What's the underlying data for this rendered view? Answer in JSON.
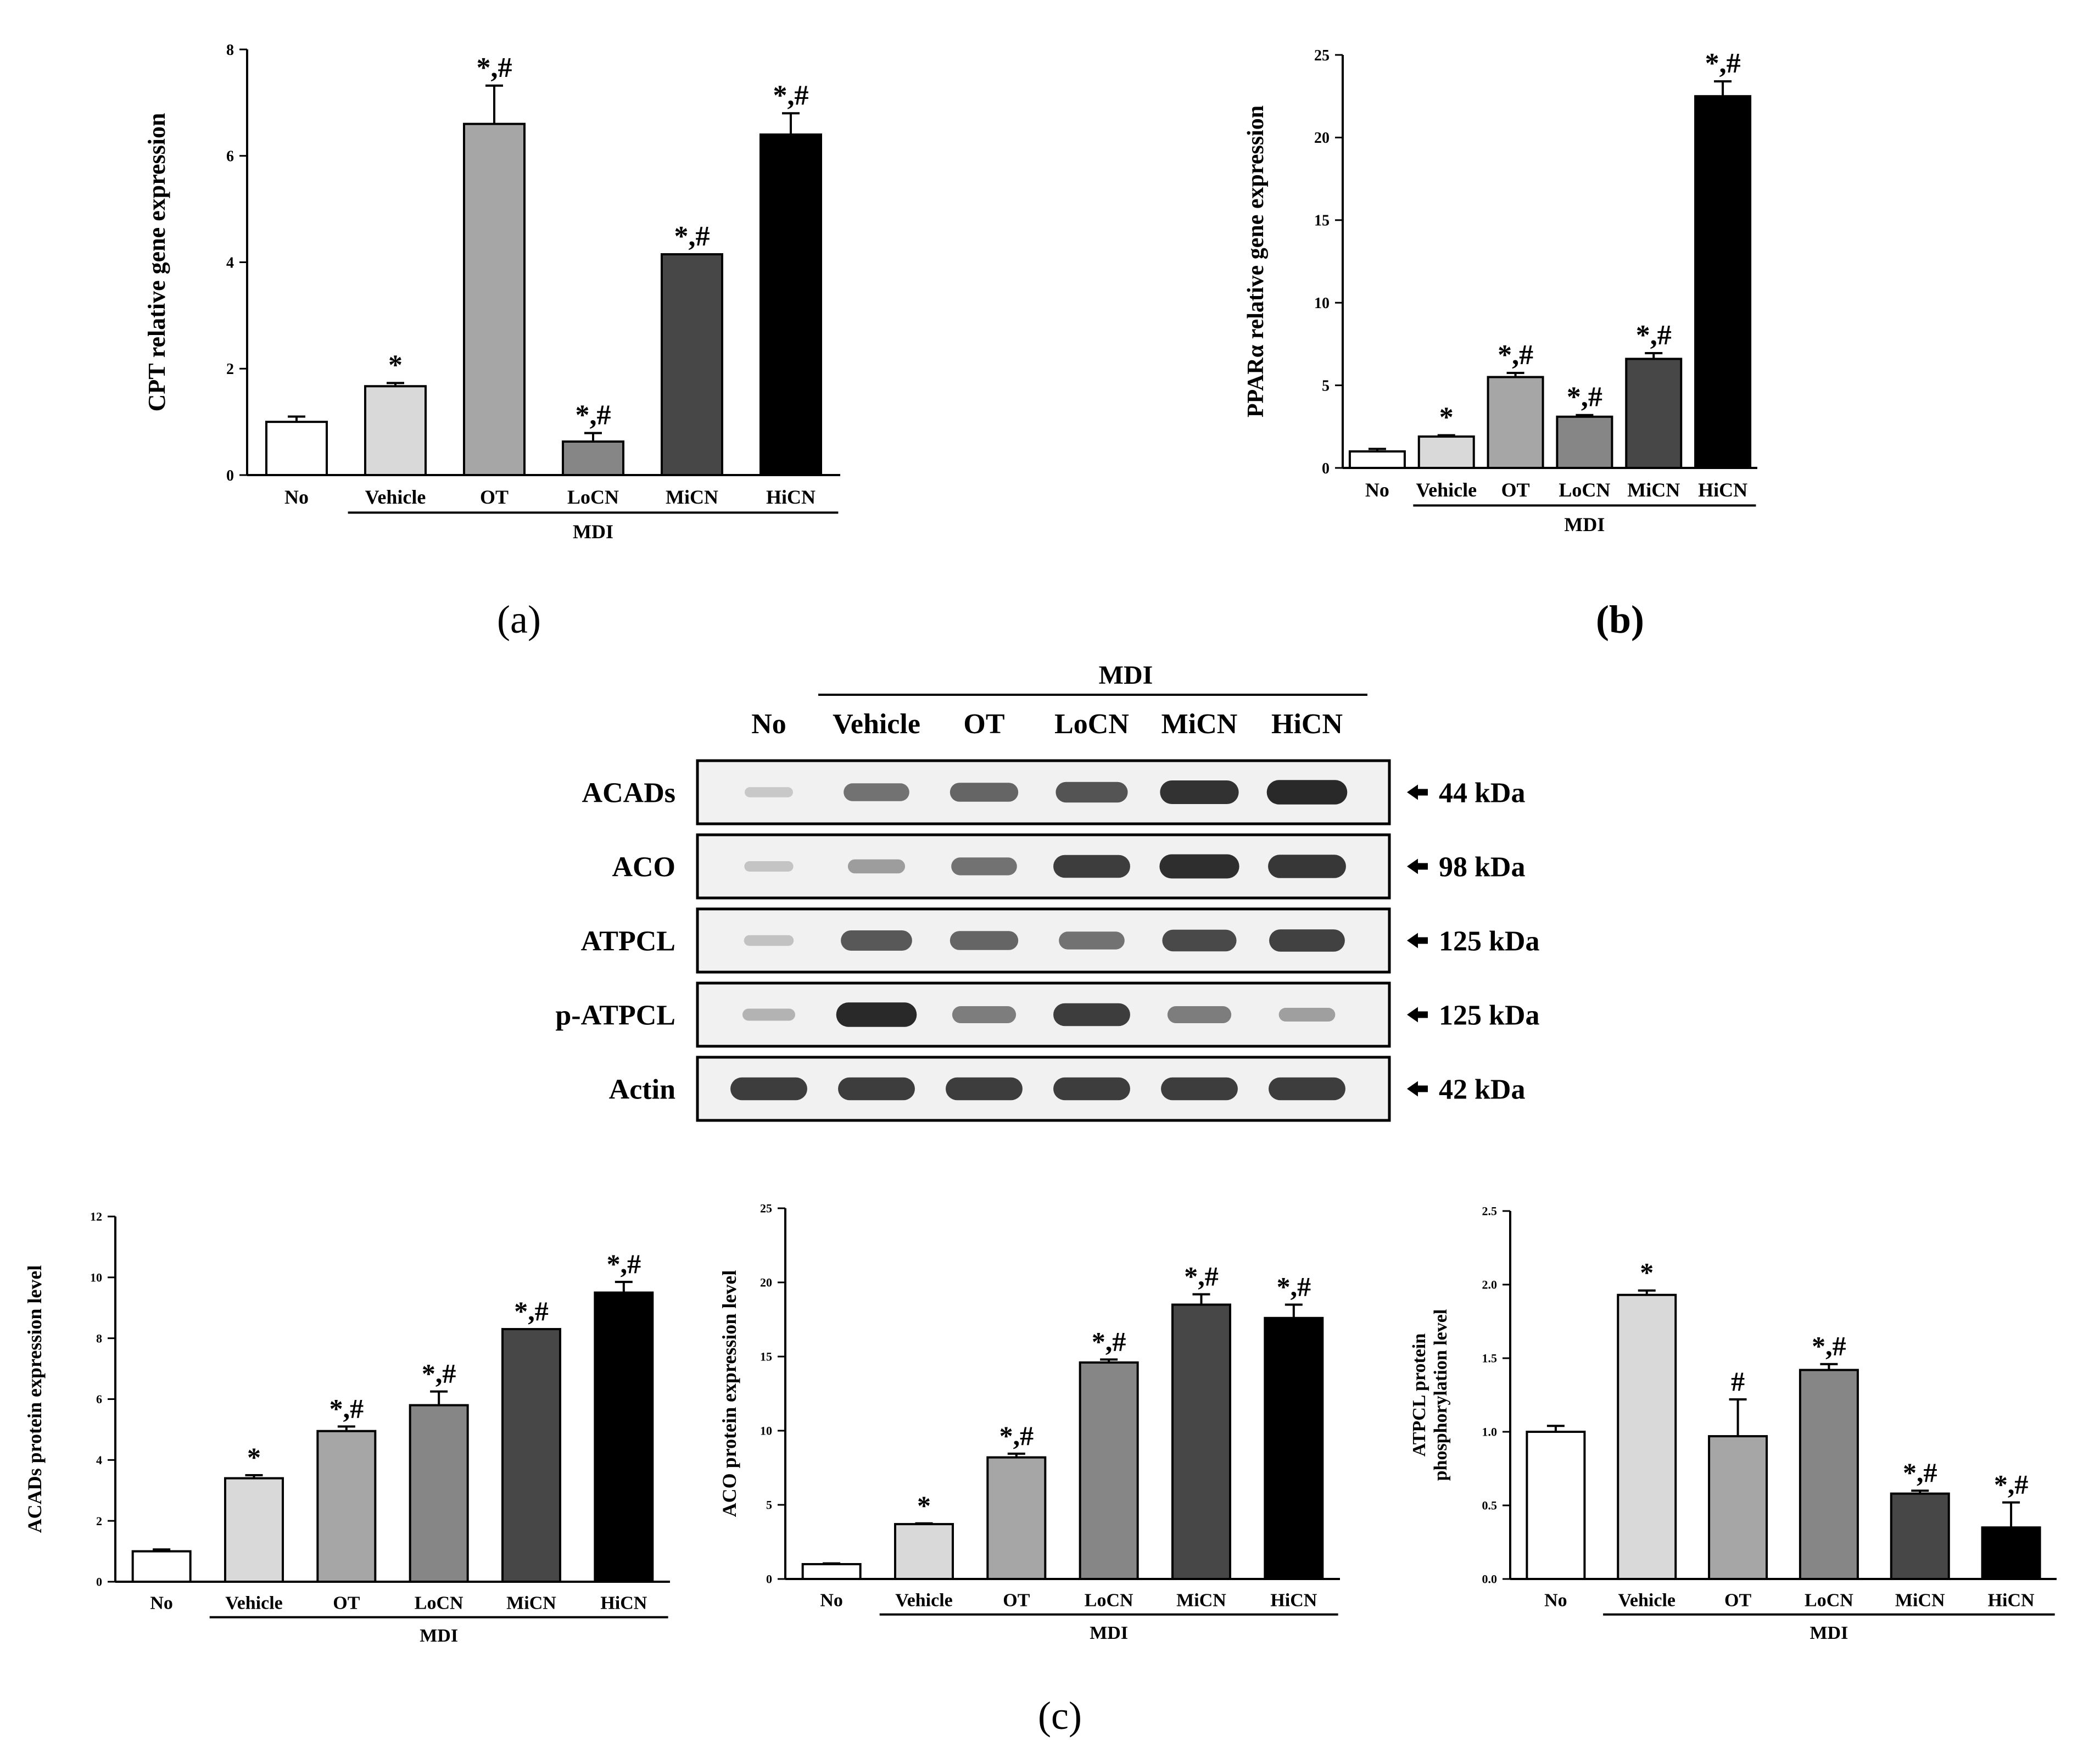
{
  "panel_labels": {
    "a": "(a)",
    "b": "(b)",
    "c": "(c)"
  },
  "colors": {
    "No": "#ffffff",
    "Vehicle": "#d9d9d9",
    "OT": "#a6a6a6",
    "LoCN": "#868686",
    "MiCN": "#474747",
    "HiCN": "#000000",
    "blot_band": "#1a1a1a",
    "blot_bg": "#f1f1f1"
  },
  "chart_data": [
    {
      "id": "cpt",
      "type": "bar",
      "title": "",
      "ylabel": "CPT relative gene expression",
      "xlabel": "MDI",
      "categories": [
        "No",
        "Vehicle",
        "OT",
        "LoCN",
        "MiCN",
        "HiCN"
      ],
      "values": [
        1.0,
        1.67,
        6.6,
        0.63,
        4.15,
        6.4
      ],
      "errors": [
        0.1,
        0.06,
        0.72,
        0.16,
        0.0,
        0.4
      ],
      "annotations": [
        "",
        "*",
        "*,#",
        "*,#",
        "*,#",
        "*,#"
      ],
      "ylim": [
        0,
        8
      ],
      "yticks": [
        0,
        2,
        4,
        6,
        8
      ],
      "group_label": "MDI",
      "group_start": 1
    },
    {
      "id": "ppara",
      "type": "bar",
      "title": "",
      "ylabel": "PPARα relative gene expression",
      "xlabel": "MDI",
      "categories": [
        "No",
        "Vehicle",
        "OT",
        "LoCN",
        "MiCN",
        "HiCN"
      ],
      "values": [
        1.0,
        1.9,
        5.5,
        3.1,
        6.6,
        22.5
      ],
      "errors": [
        0.15,
        0.08,
        0.25,
        0.1,
        0.35,
        0.9
      ],
      "annotations": [
        "",
        "*",
        "*,#",
        "*,#",
        "*,#",
        "*,#"
      ],
      "ylim": [
        0,
        25
      ],
      "yticks": [
        0,
        5,
        10,
        15,
        20,
        25
      ],
      "group_label": "MDI",
      "group_start": 1
    },
    {
      "id": "acads",
      "type": "bar",
      "title": "",
      "ylabel": "ACADs protein expression level",
      "xlabel": "MDI",
      "categories": [
        "No",
        "Vehicle",
        "OT",
        "LoCN",
        "MiCN",
        "HiCN"
      ],
      "values": [
        1.0,
        3.4,
        4.95,
        5.8,
        8.3,
        9.5
      ],
      "errors": [
        0.06,
        0.1,
        0.15,
        0.45,
        0.0,
        0.35
      ],
      "annotations": [
        "",
        "*",
        "*,#",
        "*,#",
        "*,#",
        "*,#"
      ],
      "ylim": [
        0,
        12
      ],
      "yticks": [
        0,
        2,
        4,
        6,
        8,
        10,
        12
      ],
      "group_label": "MDI",
      "group_start": 1
    },
    {
      "id": "aco",
      "type": "bar",
      "title": "",
      "ylabel": "ACO protein expression level",
      "xlabel": "MDI",
      "categories": [
        "No",
        "Vehicle",
        "OT",
        "LoCN",
        "MiCN",
        "HiCN"
      ],
      "values": [
        1.0,
        3.7,
        8.2,
        14.6,
        18.5,
        17.6
      ],
      "errors": [
        0.05,
        0.05,
        0.25,
        0.2,
        0.7,
        0.9
      ],
      "annotations": [
        "",
        "*",
        "*,#",
        "*,#",
        "*,#",
        "*,#"
      ],
      "ylim": [
        0,
        25
      ],
      "yticks": [
        0,
        5,
        10,
        15,
        20,
        25
      ],
      "group_label": "MDI",
      "group_start": 1
    },
    {
      "id": "patpcl",
      "type": "bar",
      "title": "",
      "ylabel": "ATPCL protein phosphorylation level",
      "ylabel_lines": [
        "ATPCL protein",
        "phosphorylation  level"
      ],
      "xlabel": "MDI",
      "categories": [
        "No",
        "Vehicle",
        "OT",
        "LoCN",
        "MiCN",
        "HiCN"
      ],
      "values": [
        1.0,
        1.93,
        0.97,
        1.42,
        0.58,
        0.35
      ],
      "errors": [
        0.04,
        0.03,
        0.25,
        0.04,
        0.02,
        0.17
      ],
      "annotations": [
        "",
        "*",
        "#",
        "*,#",
        "*,#",
        "*,#"
      ],
      "ylim": [
        0,
        2.5
      ],
      "yticks": [
        0.0,
        0.5,
        1.0,
        1.5,
        2.0,
        2.5
      ],
      "group_label": "MDI",
      "group_start": 1
    }
  ],
  "western_blot": {
    "group_label": "MDI",
    "lanes": [
      "No",
      "Vehicle",
      "OT",
      "LoCN",
      "MiCN",
      "HiCN"
    ],
    "rows": [
      {
        "protein": "ACADs",
        "size": "44 kDa",
        "intensity": [
          0.08,
          0.55,
          0.62,
          0.72,
          0.9,
          0.95
        ]
      },
      {
        "protein": "ACO",
        "size": "98 kDa",
        "intensity": [
          0.1,
          0.32,
          0.55,
          0.85,
          0.93,
          0.88
        ]
      },
      {
        "protein": "ATPCL",
        "size": "125 kDa",
        "intensity": [
          0.12,
          0.7,
          0.62,
          0.55,
          0.78,
          0.82
        ]
      },
      {
        "protein": "p-ATPCL",
        "size": "125 kDa",
        "intensity": [
          0.2,
          0.95,
          0.5,
          0.85,
          0.5,
          0.3
        ]
      },
      {
        "protein": "Actin",
        "size": "42 kDa",
        "intensity": [
          0.85,
          0.85,
          0.85,
          0.85,
          0.85,
          0.85
        ]
      }
    ]
  }
}
